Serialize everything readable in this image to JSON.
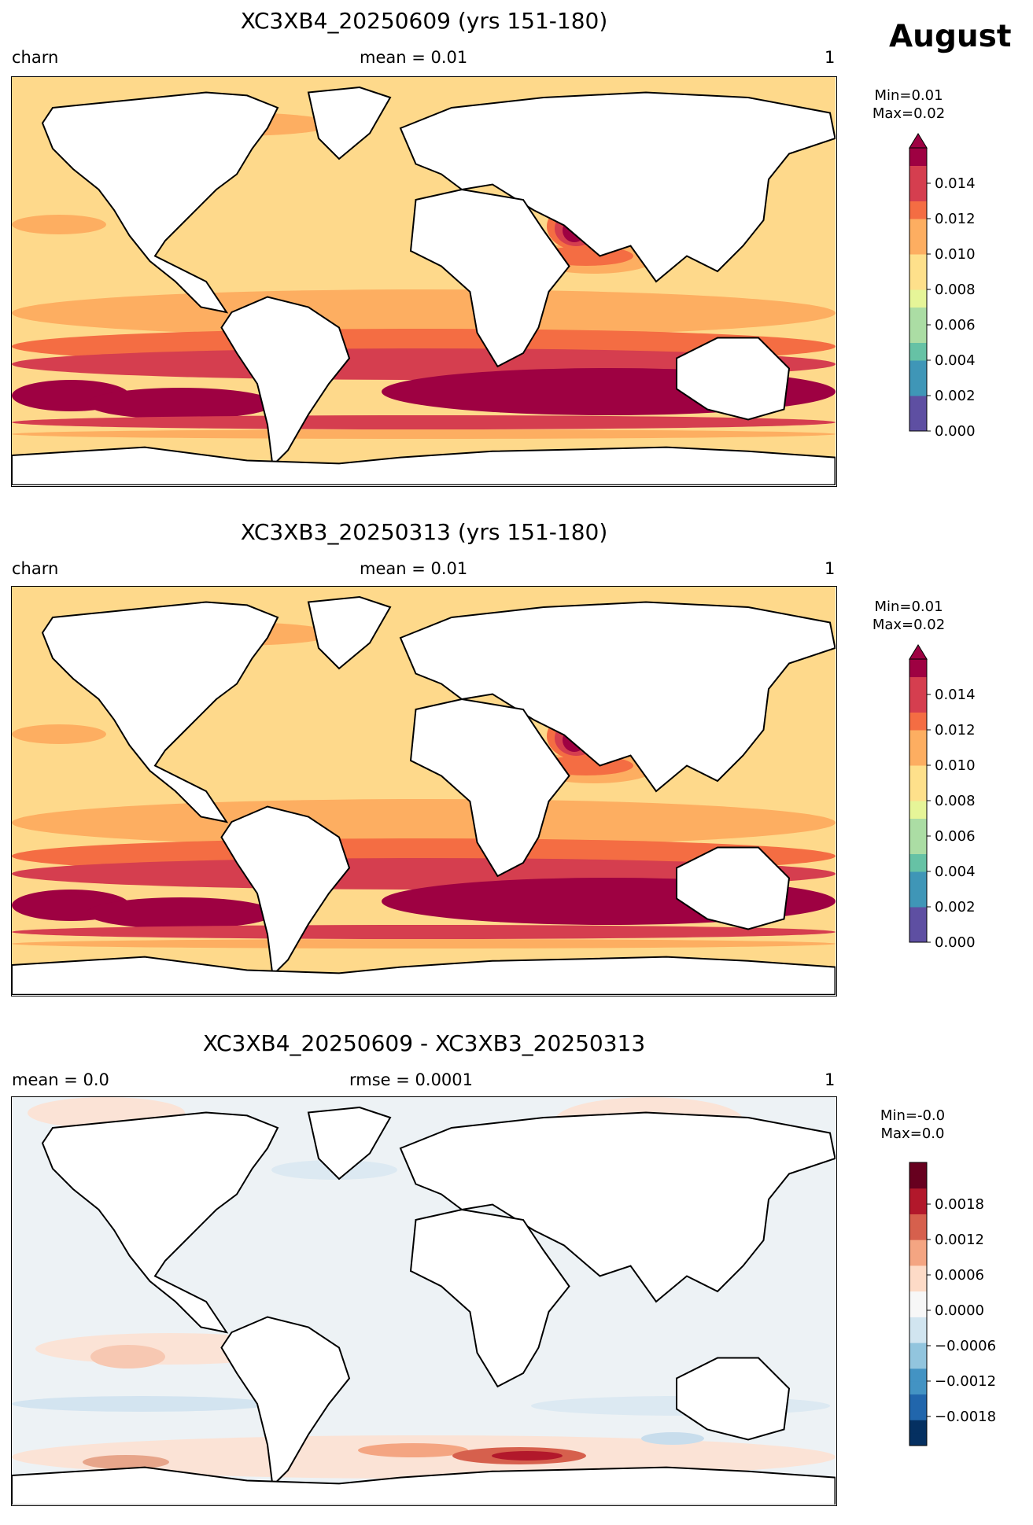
{
  "month_label": "August",
  "colors": {
    "seq": [
      "#5e4fa2",
      "#3f96b7",
      "#66c2a5",
      "#abdda4",
      "#e6f598",
      "#fee08b",
      "#fdae61",
      "#f46d43",
      "#d53e4f",
      "#9e0142"
    ],
    "diff": [
      "#053061",
      "#2166ac",
      "#4393c3",
      "#92c5de",
      "#d1e5f0",
      "#f7f7f7",
      "#fddbc7",
      "#f4a582",
      "#d6604d",
      "#b2182b",
      "#67001f"
    ],
    "ocean_base_seq": "#fed98b",
    "ocean_base_diff": "#edf2f5"
  },
  "panels": [
    {
      "title": "XC3XB4_20250609 (yrs 151-180)",
      "left_label": "charn",
      "center_label": "mean = 0.01",
      "right_label": "1",
      "min_label": "Min=0.01",
      "max_label": "Max=0.02",
      "colorbar": {
        "type": "sequential",
        "extend": "max",
        "ticks": [
          "0.000",
          "0.002",
          "0.004",
          "0.006",
          "0.008",
          "0.010",
          "0.012",
          "0.014"
        ]
      }
    },
    {
      "title": "XC3XB3_20250313 (yrs 151-180)",
      "left_label": "charn",
      "center_label": "mean = 0.01",
      "right_label": "1",
      "min_label": "Min=0.01",
      "max_label": "Max=0.02",
      "colorbar": {
        "type": "sequential",
        "extend": "max",
        "ticks": [
          "0.000",
          "0.002",
          "0.004",
          "0.006",
          "0.008",
          "0.010",
          "0.012",
          "0.014"
        ]
      }
    },
    {
      "title": "XC3XB4_20250609 - XC3XB3_20250313",
      "left_label": "mean = 0.0",
      "center_label": "rmse = 0.0001",
      "right_label": "1",
      "min_label": "Min=-0.0",
      "max_label": "Max=0.0",
      "colorbar": {
        "type": "diverging",
        "extend": "none",
        "ticks": [
          "−0.0018",
          "−0.0012",
          "−0.0006",
          "0.0000",
          "0.0006",
          "0.0012",
          "0.0018"
        ]
      }
    }
  ]
}
